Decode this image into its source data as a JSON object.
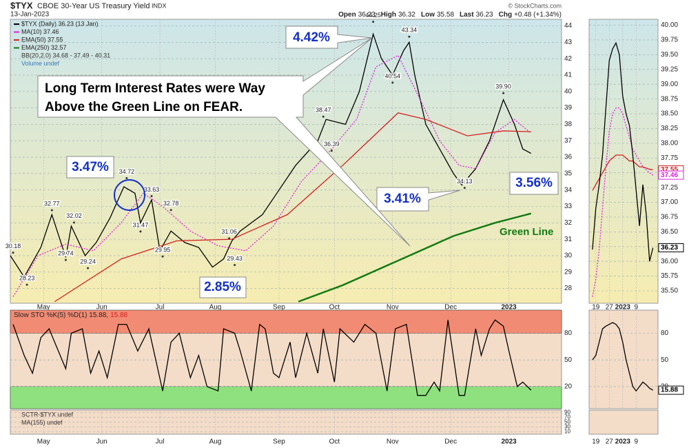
{
  "header": {
    "symbol": "$TYX",
    "name": "CBOE 30-Year US Treasury Yield",
    "exchange": "INDX",
    "date": "13-Jan-2023",
    "copyright": "© StockCharts.com",
    "quote": [
      {
        "label": "Open",
        "value": "36.23"
      },
      {
        "label": "High",
        "value": "36.32"
      },
      {
        "label": "Low",
        "value": "35.58"
      },
      {
        "label": "Last",
        "value": "36.23"
      },
      {
        "label": "Chg",
        "value": "+0.48 (+1.34%)"
      }
    ]
  },
  "annotations": {
    "callouts": [
      "3.47%",
      "4.42%",
      "2.85%",
      "3.41%",
      "3.56%"
    ],
    "note": [
      "Long Term Interest Rates were Way",
      "Above the Green Line on FEAR."
    ],
    "green_line": "Green Line"
  },
  "chart_data": [
    {
      "type": "line",
      "xlim": [
        0,
        199
      ],
      "ylim": [
        27.1,
        44.4
      ],
      "yticks": [
        28,
        29,
        30,
        31,
        32,
        33,
        34,
        35,
        36,
        37,
        38,
        39,
        40,
        41,
        42,
        43,
        44
      ],
      "xticks": [
        {
          "value": 12,
          "label": "May"
        },
        {
          "value": 33,
          "label": "Jun"
        },
        {
          "value": 54,
          "label": "Jul"
        },
        {
          "value": 74,
          "label": "Aug"
        },
        {
          "value": 97,
          "label": "Sep"
        },
        {
          "value": 117,
          "label": "Oct"
        },
        {
          "value": 138,
          "label": "Nov"
        },
        {
          "value": 159,
          "label": "Dec"
        },
        {
          "value": 180,
          "label": "2023"
        }
      ],
      "series": [
        {
          "name": "$TYX (Daily) 36.23 (13 Jan)",
          "color": "#000000",
          "x": [
            0,
            5,
            11,
            15,
            20,
            22,
            27,
            31,
            36,
            41,
            45,
            47,
            51,
            54,
            58,
            63,
            68,
            73,
            77,
            80,
            83,
            91,
            97,
            103,
            111,
            114,
            121,
            126,
            131,
            134,
            138,
            142,
            144,
            146,
            150,
            155,
            160,
            163,
            168,
            173,
            178,
            182,
            185,
            188
          ],
          "values": [
            30.0,
            28.7,
            30.5,
            32.5,
            29.9,
            31.8,
            30.0,
            30.8,
            32.3,
            34.2,
            33.8,
            32.0,
            33.4,
            30.3,
            31.5,
            30.8,
            30.5,
            29.3,
            29.8,
            30.9,
            31.5,
            32.5,
            34.0,
            35.5,
            37.0,
            38.3,
            38.0,
            40.0,
            43.5,
            42.0,
            41.0,
            42.5,
            43.0,
            41.0,
            38.0,
            36.5,
            35.0,
            34.3,
            35.3,
            37.0,
            39.5,
            38.0,
            36.5,
            36.23
          ]
        },
        {
          "name": "MA(10) 37.46",
          "color": "#e020e0",
          "style": "dotted",
          "x": [
            1,
            10,
            20,
            30,
            40,
            48,
            55,
            65,
            75,
            85,
            95,
            105,
            115,
            125,
            132,
            140,
            148,
            155,
            162,
            168,
            175,
            182,
            188
          ],
          "values": [
            27.5,
            30.0,
            30.7,
            30.3,
            32.0,
            33.8,
            33.0,
            31.5,
            30.6,
            30.3,
            31.8,
            34.5,
            36.3,
            38.3,
            41.5,
            42.2,
            39.5,
            37.0,
            35.5,
            35.3,
            37.5,
            38.3,
            37.46
          ]
        },
        {
          "name": "EMA(50) 37.55",
          "color": "#d42020",
          "x": [
            16,
            40,
            60,
            80,
            100,
            120,
            140,
            150,
            165,
            178,
            188
          ],
          "values": [
            27.2,
            29.8,
            30.9,
            31.0,
            32.5,
            35.5,
            38.7,
            38.3,
            37.3,
            37.6,
            37.55
          ]
        },
        {
          "name": "EMA(250) 32.57",
          "color": "#137a13",
          "width": 2.5,
          "x": [
            104,
            120,
            140,
            160,
            175,
            188
          ],
          "values": [
            27.2,
            28.2,
            29.7,
            31.2,
            32.0,
            32.57
          ]
        }
      ],
      "extra_legend": [
        "BB(20,2.0) 34.68 - 37.49 - 40.31",
        "Volume undef"
      ],
      "price_labels": [
        {
          "x": 1,
          "value": 30.18,
          "label": "30.18"
        },
        {
          "x": 6,
          "value": 28.23,
          "label": "28.23"
        },
        {
          "x": 15,
          "value": 32.77,
          "label": "32.77"
        },
        {
          "x": 20,
          "value": 29.74,
          "label": "29.74"
        },
        {
          "x": 23,
          "value": 32.02,
          "label": "32.02"
        },
        {
          "x": 28,
          "value": 29.24,
          "label": "29.24"
        },
        {
          "x": 42,
          "value": 34.72,
          "label": "34.72"
        },
        {
          "x": 47,
          "value": 31.47,
          "label": "31.47"
        },
        {
          "x": 51,
          "value": 33.63,
          "label": "33.63"
        },
        {
          "x": 55,
          "value": 29.95,
          "label": "29.95"
        },
        {
          "x": 58,
          "value": 32.78,
          "label": "32.78"
        },
        {
          "x": 79,
          "value": 31.06,
          "label": "31.06"
        },
        {
          "x": 81,
          "value": 29.43,
          "label": "29.43"
        },
        {
          "x": 116,
          "value": 36.39,
          "label": "36.39"
        },
        {
          "x": 113,
          "value": 38.47,
          "label": "38.47"
        },
        {
          "x": 131,
          "value": 44.25,
          "label": "44.25"
        },
        {
          "x": 144,
          "value": 43.34,
          "label": "43.34"
        },
        {
          "x": 138,
          "value": 40.54,
          "label": "40.54"
        },
        {
          "x": 178,
          "value": 39.9,
          "label": "39.90"
        },
        {
          "x": 164,
          "value": 34.13,
          "label": "34.13"
        }
      ]
    },
    {
      "type": "line",
      "title_parts": [
        "Slow STO %K(5) %D(1) 15.88,",
        "15.88"
      ],
      "xlim": [
        0,
        199
      ],
      "ylim": [
        -5,
        106
      ],
      "yticks": [
        20,
        50,
        80
      ],
      "zones": {
        "low_color": "#8fe07f",
        "high_color": "#f28b73"
      },
      "series": [
        {
          "color": "#000000",
          "x": [
            1,
            5,
            8,
            11,
            14,
            16,
            20,
            22,
            26,
            29,
            32,
            35,
            39,
            42,
            46,
            50,
            55,
            58,
            61,
            65,
            68,
            71,
            75,
            77,
            81,
            83,
            87,
            90,
            92,
            95,
            97,
            101,
            103,
            107,
            111,
            113,
            117,
            119,
            124,
            128,
            132,
            136,
            139,
            143,
            147,
            150,
            153,
            155,
            158,
            162,
            164,
            168,
            170,
            173,
            175,
            178,
            180,
            183,
            185,
            188
          ],
          "values": [
            90,
            55,
            35,
            75,
            85,
            70,
            40,
            80,
            85,
            35,
            60,
            30,
            90,
            90,
            60,
            85,
            15,
            70,
            80,
            30,
            55,
            20,
            15,
            85,
            80,
            60,
            15,
            90,
            85,
            35,
            30,
            70,
            30,
            80,
            35,
            85,
            25,
            85,
            70,
            90,
            80,
            15,
            85,
            90,
            10,
            10,
            25,
            15,
            95,
            10,
            10,
            85,
            55,
            85,
            95,
            88,
            60,
            20,
            25,
            15.88
          ]
        }
      ]
    },
    {
      "type": "line",
      "xlim": [
        0,
        199
      ],
      "ylim": [
        0,
        100
      ],
      "yticks": [
        10,
        30,
        50,
        70,
        90
      ],
      "extra_legend": [
        "SCTR-$TYX undef",
        "MA(155) undef"
      ],
      "xticks": [
        {
          "value": 12,
          "label": "May"
        },
        {
          "value": 33,
          "label": "Jun"
        },
        {
          "value": 54,
          "label": "Jul"
        },
        {
          "value": 74,
          "label": "Aug"
        },
        {
          "value": 97,
          "label": "Sep"
        },
        {
          "value": 117,
          "label": "Oct"
        },
        {
          "value": 138,
          "label": "Nov"
        },
        {
          "value": 159,
          "label": "Dec"
        },
        {
          "value": 180,
          "label": "2023"
        }
      ],
      "series": []
    },
    {
      "type": "line",
      "xlim": [
        -1,
        19.5
      ],
      "ylim": [
        35.29,
        40.1
      ],
      "last_tags": true,
      "yticks": [
        {
          "value": 35.5,
          "label": "35.50"
        },
        {
          "value": 35.75,
          "label": "35.75"
        },
        {
          "value": 36,
          "label": "36.00"
        },
        {
          "value": 36.25,
          "label": "36.25"
        },
        {
          "value": 36.5,
          "label": "36.50"
        },
        {
          "value": 36.75,
          "label": "36.75"
        },
        {
          "value": 37,
          "label": "37.00"
        },
        {
          "value": 37.25,
          "label": "37.25"
        },
        {
          "value": 37.5,
          "label": "37.50"
        },
        {
          "value": 37.75,
          "label": "37.75"
        },
        {
          "value": 38,
          "label": "38.00"
        },
        {
          "value": 38.25,
          "label": "38.25"
        },
        {
          "value": 38.5,
          "label": "38.50"
        },
        {
          "value": 38.75,
          "label": "38.75"
        },
        {
          "value": 39,
          "label": "39.00"
        },
        {
          "value": 39.25,
          "label": "39.25"
        },
        {
          "value": 39.5,
          "label": "39.50"
        },
        {
          "value": 39.75,
          "label": "39.75"
        },
        {
          "value": 40,
          "label": "40.00"
        }
      ],
      "xticks": [
        {
          "value": 1,
          "label": "19"
        },
        {
          "value": 5,
          "label": "27"
        },
        {
          "value": 9,
          "label": "2023"
        },
        {
          "value": 13,
          "label": "9"
        }
      ],
      "series": [
        {
          "color": "#d42020",
          "x": [
            0,
            1,
            2,
            3,
            4,
            5,
            6,
            7,
            8,
            9,
            10,
            11,
            12,
            13,
            14,
            15,
            16,
            17,
            18
          ],
          "values": [
            37.2,
            37.3,
            37.4,
            37.5,
            37.6,
            37.7,
            37.75,
            37.8,
            37.8,
            37.8,
            37.75,
            37.7,
            37.7,
            37.65,
            37.6,
            37.6,
            37.58,
            37.56,
            37.55
          ]
        },
        {
          "color": "#e020e0",
          "style": "dotted",
          "x": [
            0,
            1,
            2,
            3,
            4,
            5,
            6,
            7,
            8,
            9,
            10,
            11,
            12,
            13,
            14,
            15,
            16,
            17,
            18
          ],
          "values": [
            35.4,
            35.7,
            36.2,
            36.9,
            37.6,
            38.2,
            38.5,
            38.6,
            38.6,
            38.5,
            38.3,
            38.1,
            37.9,
            37.8,
            37.7,
            37.6,
            37.55,
            37.5,
            37.46
          ]
        },
        {
          "color": "#000000",
          "x": [
            0,
            1,
            2,
            3,
            4,
            5,
            6,
            7,
            8,
            9,
            10,
            11,
            12,
            13,
            14,
            15,
            16,
            17,
            18
          ],
          "values": [
            36.2,
            36.9,
            37.3,
            37.8,
            38.6,
            39.4,
            39.6,
            39.7,
            39.5,
            38.8,
            38.5,
            38.3,
            37.8,
            37.2,
            36.6,
            37.3,
            36.8,
            36.0,
            36.23
          ]
        }
      ]
    },
    {
      "type": "line",
      "xlim": [
        -1,
        19.5
      ],
      "ylim": [
        -5,
        106
      ],
      "yticks": [
        20,
        50,
        80
      ],
      "last_tags": true,
      "xticks": [
        {
          "value": 1,
          "label": "19"
        },
        {
          "value": 5,
          "label": "27"
        },
        {
          "value": 9,
          "label": "2023"
        },
        {
          "value": 13,
          "label": "9"
        }
      ],
      "series": [
        {
          "color": "#000000",
          "x": [
            0,
            1,
            2,
            3,
            4,
            5,
            6,
            7,
            8,
            9,
            10,
            11,
            12,
            13,
            14,
            15,
            16,
            17,
            18
          ],
          "values": [
            50,
            55,
            70,
            85,
            88,
            90,
            92,
            90,
            85,
            70,
            50,
            35,
            20,
            15,
            20,
            25,
            22,
            18,
            15.88
          ]
        }
      ]
    }
  ]
}
